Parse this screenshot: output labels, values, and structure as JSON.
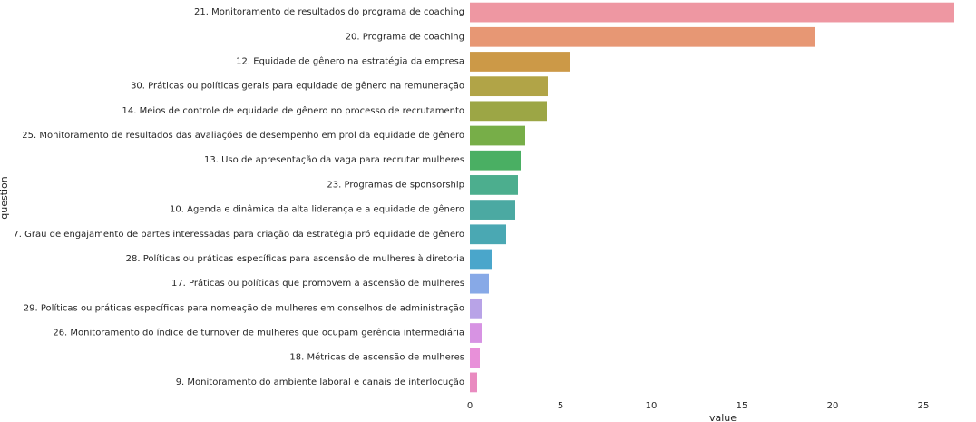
{
  "chart_data": {
    "type": "bar",
    "orientation": "horizontal",
    "xlabel": "value",
    "ylabel": "question",
    "xlim": [
      0,
      27
    ],
    "xticks": [
      0,
      5,
      10,
      15,
      20,
      25
    ],
    "grid": false,
    "categories": [
      "21. Monitoramento de resultados do programa de coaching",
      "20. Programa de coaching",
      "12. Equidade de gênero na estratégia da empresa",
      "30. Práticas ou políticas gerais para equidade de gênero na remuneração",
      "14. Meios de controle de equidade de gênero no processo de recrutamento",
      "25. Monitoramento de resultados das avaliações de desempenho em prol da equidade de gênero",
      "13. Uso de apresentação da vaga para recrutar mulheres",
      "23. Programas de sponsorship",
      "10. Agenda e dinâmica da alta liderança e a equidade de gênero",
      "7. Grau de engajamento de partes interessadas para criação da estratégia pró equidade de gênero",
      "28. Políticas ou práticas específicas para ascensão de mulheres à diretoria",
      "17. Práticas ou políticas que promovem a ascensão de mulheres",
      "29. Políticas ou práticas específicas para nomeação de mulheres em conselhos de administração",
      "26. Monitoramento do índice de turnover de mulheres que ocupam gerência intermediária",
      "18. Métricas de ascensão de mulheres",
      "9. Monitoramento do ambiente laboral e canais de interlocução"
    ],
    "values": [
      26.7,
      19.0,
      5.5,
      4.3,
      4.25,
      3.05,
      2.8,
      2.65,
      2.5,
      2.0,
      1.2,
      1.05,
      0.65,
      0.65,
      0.55,
      0.4
    ],
    "colors": [
      "#ee97a2",
      "#e79774",
      "#cc9947",
      "#b1a447",
      "#9ca645",
      "#77ae48",
      "#4aaf63",
      "#4cae8e",
      "#4ba9a2",
      "#4aa8b3",
      "#4aa6cb",
      "#87a9e7",
      "#b8a3e7",
      "#d793e3",
      "#e890d9",
      "#e98bc0"
    ]
  }
}
